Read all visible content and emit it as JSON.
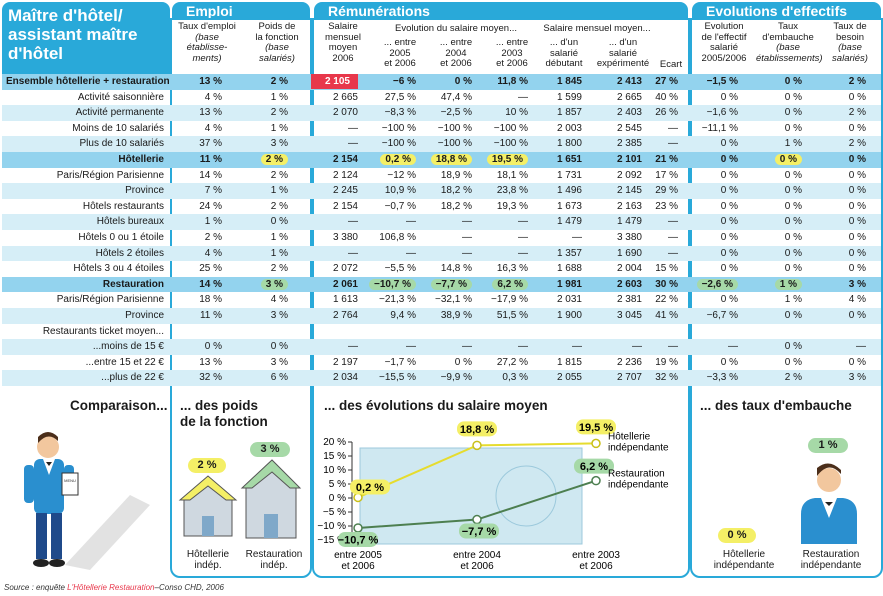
{
  "title": "Maître d'hôtel/ assistant maître d'hôtel",
  "sections": {
    "emploi": "Emploi",
    "remunerations": "Rémunérations",
    "effectifs": "Evolutions d'effectifs"
  },
  "col_headers": {
    "taux_emploi": [
      "Taux d'emploi",
      "(base",
      "établisse-",
      "ments)"
    ],
    "poids": [
      "Poids de",
      "la fonction",
      "(base",
      "salariés)"
    ],
    "salaire_moyen": [
      "Salaire",
      "mensuel",
      "moyen",
      "2006"
    ],
    "evol_group": "Evolution du salaire moyen...",
    "evol_2005": [
      "... entre",
      "2005",
      "et 2006"
    ],
    "evol_2004": [
      "... entre",
      "2004",
      "et 2006"
    ],
    "evol_2003": [
      "... entre",
      "2003",
      "et 2006"
    ],
    "sal_group": "Salaire mensuel moyen...",
    "sal_debut": [
      "... d'un",
      "salarié",
      "débutant"
    ],
    "sal_exp": [
      "... d'un",
      "salarié",
      "expérimenté"
    ],
    "ecart": "Ecart",
    "evol_effectif": [
      "Evolution",
      "de l'effectif",
      "salarié",
      "2005/2006"
    ],
    "taux_embauche": [
      "Taux",
      "d'embauche",
      "(base",
      "établissements)"
    ],
    "taux_besoin": [
      "Taux de",
      "besoin",
      "(base",
      "salariés)"
    ]
  },
  "rows": [
    {
      "label": "Ensemble hôtellerie + restauration",
      "style": "band",
      "v": [
        "13 %",
        "2 %",
        "2 105",
        "−6 %",
        "0 %",
        "11,8 %",
        "1 845",
        "2 413",
        "27 %",
        "−1,5 %",
        "0 %",
        "2 %"
      ]
    },
    {
      "label": "Activité saisonnière",
      "style": "plain",
      "v": [
        "4 %",
        "1 %",
        "2 665",
        "27,5 %",
        "47,4 %",
        "—",
        "1 599",
        "2 665",
        "40 %",
        "0 %",
        "0 %",
        "0 %"
      ]
    },
    {
      "label": "Activité permanente",
      "style": "alt",
      "v": [
        "13 %",
        "2 %",
        "2 070",
        "−8,3 %",
        "−2,5 %",
        "10 %",
        "1 857",
        "2 403",
        "26 %",
        "−1,6 %",
        "0 %",
        "2 %"
      ]
    },
    {
      "label": "Moins de 10 salariés",
      "style": "plain",
      "v": [
        "4 %",
        "1 %",
        "—",
        "−100 %",
        "−100 %",
        "−100 %",
        "2 003",
        "2 545",
        "—",
        "−11,1 %",
        "0 %",
        "0 %"
      ]
    },
    {
      "label": "Plus de 10 salariés",
      "style": "alt",
      "v": [
        "37 %",
        "3 %",
        "—",
        "−100 %",
        "−100 %",
        "−100 %",
        "1 800",
        "2 385",
        "—",
        "0 %",
        "1 %",
        "2 %"
      ]
    },
    {
      "label": "Hôtellerie",
      "style": "band",
      "v": [
        "11 %",
        "2 %",
        "2 154",
        "0,2 %",
        "18,8 %",
        "19,5 %",
        "1 651",
        "2 101",
        "21 %",
        "0 %",
        "0 %",
        "0 %"
      ]
    },
    {
      "label": "Paris/Région Parisienne",
      "style": "plain",
      "v": [
        "14 %",
        "2 %",
        "2 124",
        "−12 %",
        "18,9 %",
        "18,1 %",
        "1 731",
        "2 092",
        "17 %",
        "0 %",
        "0 %",
        "0 %"
      ]
    },
    {
      "label": "Province",
      "style": "alt",
      "v": [
        "7 %",
        "1 %",
        "2 245",
        "10,9 %",
        "18,2 %",
        "23,8 %",
        "1 496",
        "2 145",
        "29 %",
        "0 %",
        "0 %",
        "0 %"
      ]
    },
    {
      "label": "Hôtels restaurants",
      "style": "plain",
      "v": [
        "24 %",
        "2 %",
        "2 154",
        "−0,7 %",
        "18,2 %",
        "19,3 %",
        "1 673",
        "2 163",
        "23 %",
        "0 %",
        "0 %",
        "0 %"
      ]
    },
    {
      "label": "Hôtels bureaux",
      "style": "alt",
      "v": [
        "1 %",
        "0 %",
        "—",
        "—",
        "—",
        "—",
        "1 479",
        "1 479",
        "—",
        "0 %",
        "0 %",
        "0 %"
      ]
    },
    {
      "label": "Hôtels 0 ou 1 étoile",
      "style": "plain",
      "v": [
        "2 %",
        "1 %",
        "3 380",
        "106,8 %",
        "—",
        "—",
        "—",
        "3 380",
        "—",
        "0 %",
        "0 %",
        "0 %"
      ]
    },
    {
      "label": "Hôtels 2 étoiles",
      "style": "alt",
      "v": [
        "4 %",
        "1 %",
        "—",
        "—",
        "—",
        "—",
        "1 357",
        "1 690",
        "—",
        "0 %",
        "0 %",
        "0 %"
      ]
    },
    {
      "label": "Hôtels 3 ou 4 étoiles",
      "style": "plain",
      "v": [
        "25 %",
        "2 %",
        "2 072",
        "−5,5 %",
        "14,8 %",
        "16,3 %",
        "1 688",
        "2 004",
        "15 %",
        "0 %",
        "0 %",
        "0 %"
      ]
    },
    {
      "label": "Restauration",
      "style": "band",
      "v": [
        "14 %",
        "3 %",
        "2 061",
        "−10,7 %",
        "−7,7 %",
        "6,2 %",
        "1 981",
        "2 603",
        "30 %",
        "−2,6 %",
        "1 %",
        "3 %"
      ]
    },
    {
      "label": "Paris/Région Parisienne",
      "style": "plain",
      "v": [
        "18 %",
        "4 %",
        "1 613",
        "−21,3 %",
        "−32,1 %",
        "−17,9 %",
        "2 031",
        "2 381",
        "22 %",
        "0 %",
        "1 %",
        "4 %"
      ]
    },
    {
      "label": "Province",
      "style": "alt",
      "v": [
        "11 %",
        "3 %",
        "2 764",
        "9,4 %",
        "38,9 %",
        "51,5 %",
        "1 900",
        "3 045",
        "41 %",
        "−6,7 %",
        "0 %",
        "0 %"
      ]
    },
    {
      "label": "Restaurants ticket moyen...",
      "style": "plain",
      "v": [
        "",
        "",
        "",
        "",
        "",
        "",
        "",
        "",
        "",
        "",
        "",
        ""
      ]
    },
    {
      "label": "...moins de 15 €",
      "style": "alt",
      "v": [
        "0 %",
        "0 %",
        "—",
        "—",
        "—",
        "—",
        "—",
        "—",
        "—",
        "—",
        "0 %",
        "—"
      ]
    },
    {
      "label": "...entre 15 et 22 €",
      "style": "plain",
      "v": [
        "13 %",
        "3 %",
        "2 197",
        "−1,7 %",
        "0 %",
        "27,2 %",
        "1 815",
        "2 236",
        "19 %",
        "0 %",
        "0 %",
        "0 %"
      ]
    },
    {
      "label": "...plus de 22 €",
      "style": "alt",
      "v": [
        "32 %",
        "6 %",
        "2 034",
        "−15,5 %",
        "−9,9 %",
        "0,3 %",
        "2 055",
        "2 707",
        "32 %",
        "−3,3 %",
        "2 %",
        "3 %"
      ]
    }
  ],
  "comparison": {
    "title": "Comparaison...",
    "menu_text": "MENU",
    "poids_title": [
      "... des poids",
      "de la fonction"
    ],
    "poids_hotel": "2 %",
    "poids_resto": "3 %",
    "poids_hotel_label": [
      "Hôtellerie",
      "indép."
    ],
    "poids_resto_label": [
      "Restauration",
      "indép."
    ],
    "salaire_title": "... des évolutions du salaire moyen",
    "embauche_title": "... des taux d'embauche",
    "embauche_hotel": "0 %",
    "embauche_resto": "1 %",
    "embauche_hotel_label": [
      "Hôtellerie",
      "indépendante"
    ],
    "embauche_resto_label": [
      "Restauration",
      "indépendante"
    ]
  },
  "chart_data": {
    "type": "line",
    "title": "... des évolutions du salaire moyen",
    "categories": [
      "entre 2005 et 2006",
      "entre 2004 et 2006",
      "entre 2003 et 2006"
    ],
    "series": [
      {
        "name": "Hôtellerie indépendante",
        "values": [
          0.2,
          18.8,
          19.5
        ],
        "labels": [
          "0,2 %",
          "18,8 %",
          "19,5 %"
        ],
        "color": "#e6dc2e"
      },
      {
        "name": "Restauration indépendante",
        "values": [
          -10.7,
          -7.7,
          6.2
        ],
        "labels": [
          "−10,7 %",
          "−7,7 %",
          "6,2 %"
        ],
        "color": "#5a8a5c"
      }
    ],
    "ylim": [
      -15,
      20
    ],
    "yticks": [
      20,
      15,
      10,
      5,
      0,
      -5,
      -10,
      -15
    ],
    "ytick_labels": [
      "20 %",
      "15 %",
      "10 %",
      "5 %",
      "0 %",
      "−5 %",
      "−10 %",
      "−15 %"
    ],
    "xtick_labels": [
      [
        "entre 2005",
        "et 2006"
      ],
      [
        "entre 2004",
        "et 2006"
      ],
      [
        "entre 2003",
        "et 2006"
      ]
    ],
    "legend_labels": [
      [
        "Hôtellerie",
        "indépendante"
      ],
      [
        "Restauration",
        "indépendante"
      ]
    ],
    "grid": false
  },
  "source": {
    "prefix": "Source : enquête ",
    "highlight": "L'Hôtellerie Restauration",
    "suffix": "–Conso CHD, 2006"
  },
  "colors": {
    "accent": "#29a9d9",
    "band": "#93d3ee",
    "alt": "#d6eef7",
    "highlight_red": "#e8374b",
    "pill_yellow": "#f4ef66",
    "pill_green": "#a6d9a7"
  }
}
